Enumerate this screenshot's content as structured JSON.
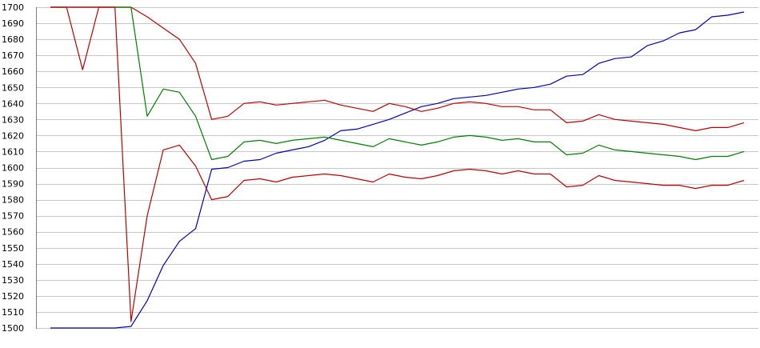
{
  "chart_data": {
    "type": "line",
    "title": "",
    "xlabel": "",
    "ylabel": "",
    "ylim": [
      1500,
      1700
    ],
    "yticks": [
      1500,
      1510,
      1520,
      1530,
      1540,
      1550,
      1560,
      1570,
      1580,
      1590,
      1600,
      1610,
      1620,
      1630,
      1640,
      1650,
      1660,
      1670,
      1680,
      1690,
      1700
    ],
    "grid": "horizontal",
    "legend": "none",
    "x": [
      1,
      2,
      3,
      4,
      5,
      6,
      7,
      8,
      9,
      10,
      11,
      12,
      13,
      14,
      15,
      16,
      17,
      18,
      19,
      20,
      21,
      22,
      23,
      24,
      25,
      26,
      27,
      28,
      29,
      30,
      31,
      32,
      33,
      34,
      35,
      36,
      37,
      38,
      39,
      40,
      41,
      42,
      43,
      44
    ],
    "series": [
      {
        "color": "#0000c0",
        "values": [
          1500,
          1500,
          1500,
          1500,
          1500,
          1501,
          1517,
          1539,
          1554,
          1562,
          1599,
          1600,
          1604,
          1605,
          1609,
          1611,
          1613,
          1617,
          1623,
          1624,
          1627,
          1630,
          1634,
          1638,
          1640,
          1643,
          1644,
          1645,
          1647,
          1649,
          1650,
          1652,
          1657,
          1658,
          1665,
          1668,
          1669,
          1676,
          1679,
          1684,
          1686,
          1694,
          1695,
          1697
        ]
      },
      {
        "color": "#c00000",
        "values": [
          1700,
          1700,
          1661,
          1700,
          1700,
          1700,
          1694,
          1687,
          1680,
          1665,
          1630,
          1632,
          1640,
          1641,
          1639,
          1640,
          1641,
          1642,
          1639,
          1637,
          1635,
          1640,
          1638,
          1635,
          1637,
          1640,
          1641,
          1640,
          1638,
          1638,
          1636,
          1636,
          1628,
          1629,
          1633,
          1630,
          1629,
          1628,
          1627,
          1625,
          1623,
          1625,
          1625,
          1628
        ]
      },
      {
        "color": "#008000",
        "values": [
          1700,
          1700,
          1700,
          1700,
          1700,
          1700,
          1632,
          1649,
          1647,
          1632,
          1605,
          1607,
          1616,
          1617,
          1615,
          1617,
          1618,
          1619,
          1617,
          1615,
          1613,
          1618,
          1616,
          1614,
          1616,
          1619,
          1620,
          1619,
          1617,
          1618,
          1616,
          1616,
          1608,
          1609,
          1614,
          1611,
          1610,
          1609,
          1608,
          1607,
          1605,
          1607,
          1607,
          1610
        ]
      },
      {
        "color": "#c00000",
        "values": [
          1700,
          1700,
          1700,
          1700,
          1700,
          1504,
          1570,
          1611,
          1614,
          1601,
          1580,
          1582,
          1592,
          1593,
          1591,
          1594,
          1595,
          1596,
          1595,
          1593,
          1591,
          1596,
          1594,
          1593,
          1595,
          1598,
          1599,
          1598,
          1596,
          1598,
          1596,
          1596,
          1588,
          1589,
          1595,
          1592,
          1591,
          1590,
          1589,
          1589,
          1587,
          1589,
          1589,
          1592
        ]
      }
    ]
  }
}
